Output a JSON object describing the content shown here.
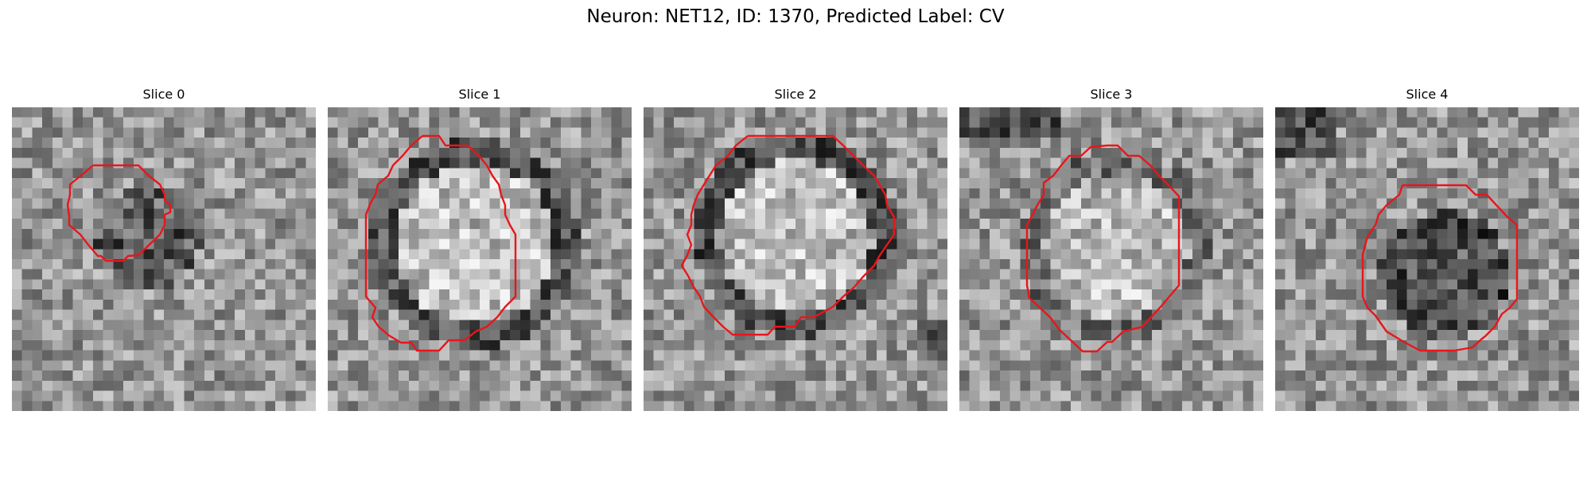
{
  "figure": {
    "title": "Neuron: NET12, ID: 1370, Predicted Label: CV"
  },
  "slices": [
    {
      "label": "Slice 0",
      "blob": "dark",
      "contour_color": "#e8161b"
    },
    {
      "label": "Slice 1",
      "blob": "light",
      "contour_color": "#e8161b"
    },
    {
      "label": "Slice 2",
      "blob": "light",
      "contour_color": "#e8161b"
    },
    {
      "label": "Slice 3",
      "blob": "light",
      "contour_color": "#e8161b"
    },
    {
      "label": "Slice 4",
      "blob": "dark",
      "contour_color": "#e8161b"
    }
  ],
  "colors": {
    "contour": "#e8161b",
    "colormap": "grayscale"
  }
}
